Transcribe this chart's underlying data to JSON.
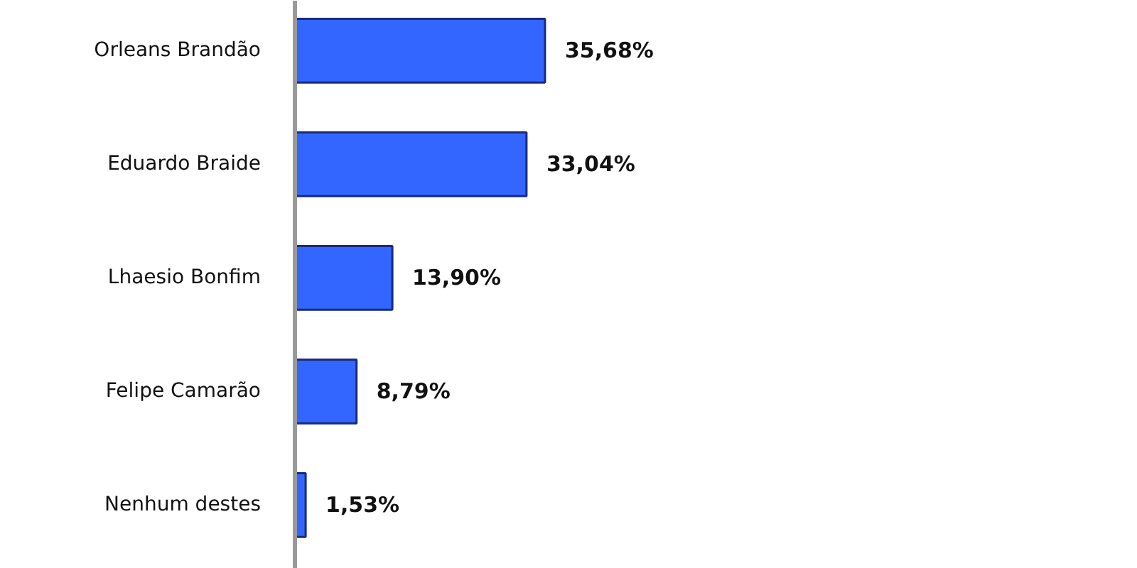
{
  "chart_data": {
    "type": "bar",
    "orientation": "horizontal",
    "categories": [
      "Orleans Brandão",
      "Eduardo Braide",
      "Lhaesio Bonfim",
      "Felipe Camarão",
      "Nenhum destes"
    ],
    "values": [
      35.68,
      33.04,
      13.9,
      8.79,
      1.53
    ],
    "value_labels": [
      "35,68%",
      "33,04%",
      "13,90%",
      "8,79%",
      "1,53%"
    ],
    "color": "#3366ff",
    "grid": false
  }
}
